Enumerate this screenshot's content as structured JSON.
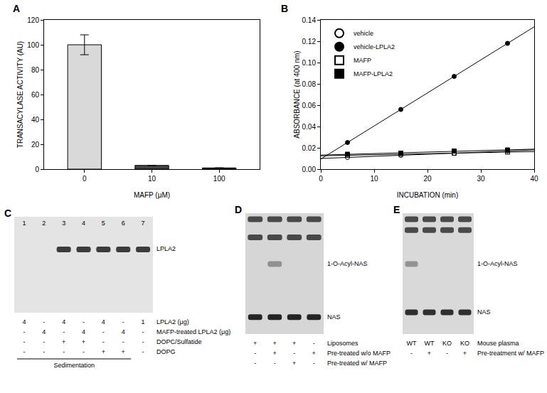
{
  "chart_data": [
    {
      "panel": "A",
      "type": "bar",
      "categories": [
        "0",
        "10",
        "100"
      ],
      "values": [
        100,
        3,
        1
      ],
      "errors": [
        8,
        null,
        null
      ],
      "colors": [
        "#d9d9d9",
        "#444444",
        "#222222"
      ],
      "x_label": "MAFP (μM)",
      "y_label": "TRANSACYLASE ACTIVITY (AU)",
      "ylim": [
        0,
        120
      ],
      "yticks": [
        0,
        20,
        40,
        60,
        80,
        100,
        120
      ]
    },
    {
      "panel": "B",
      "type": "scatter",
      "x": [
        5,
        15,
        25,
        35
      ],
      "series": [
        {
          "name": "vehicle",
          "color": "#000000",
          "marker": "circle-open",
          "values": [
            0.011,
            0.013,
            0.015,
            0.017
          ]
        },
        {
          "name": "vehicle-LPLA2",
          "color": "#000000",
          "marker": "circle",
          "values": [
            0.025,
            0.056,
            0.087,
            0.118
          ]
        },
        {
          "name": "MAFP",
          "color": "#000000",
          "marker": "square-open",
          "values": [
            0.013,
            0.014,
            0.015,
            0.016
          ]
        },
        {
          "name": "MAFP-LPLA2",
          "color": "#000000",
          "marker": "square",
          "values": [
            0.014,
            0.015,
            0.017,
            0.018
          ]
        }
      ],
      "x_label": "INCUBATION (min)",
      "y_label": "ABSORBANCE (at 400 nm)",
      "xlim": [
        0,
        40
      ],
      "xticks": [
        0,
        10,
        20,
        30,
        40
      ],
      "ylim": [
        0,
        0.14
      ],
      "yticks": [
        {
          "value": 0,
          "label": "0.00"
        },
        {
          "value": 0.02,
          "label": "0.02"
        },
        {
          "value": 0.04,
          "label": "0.04"
        },
        {
          "value": 0.06,
          "label": "0.06"
        },
        {
          "value": 0.08,
          "label": "0.08"
        },
        {
          "value": 0.1,
          "label": "0.10"
        },
        {
          "value": 0.12,
          "label": "0.12"
        },
        {
          "value": 0.14,
          "label": "0.14"
        }
      ],
      "legend": "upper left"
    }
  ],
  "gels": [
    {
      "panel": "C",
      "lane_numbers": [
        "1",
        "2",
        "3",
        "4",
        "5",
        "6",
        "7"
      ],
      "band_labels": [
        "LPLA2"
      ],
      "lanes": [
        [],
        [],
        [
          "LPLA2"
        ],
        [
          "LPLA2"
        ],
        [
          "LPLA2"
        ],
        [
          "LPLA2"
        ],
        [
          "LPLA2"
        ]
      ],
      "rows": [
        {
          "label": "LPLA2 (μg)",
          "cells": [
            "4",
            "-",
            "4",
            "-",
            "4",
            "-",
            "1"
          ]
        },
        {
          "label": "MAFP-treated LPLA2 (μg)",
          "cells": [
            "-",
            "4",
            "-",
            "4",
            "-",
            "4",
            "-"
          ]
        },
        {
          "label": "DOPC/Sulfatide",
          "cells": [
            "-",
            "-",
            "+",
            "+",
            "-",
            "-",
            "-"
          ]
        },
        {
          "label": "DOPG",
          "cells": [
            "-",
            "-",
            "-",
            "-",
            "+",
            "+",
            "-"
          ]
        }
      ],
      "footer": "Sedimentation"
    },
    {
      "panel": "D",
      "band_labels": [
        "1-O-Acyl-NAS",
        "NAS"
      ],
      "lanes": [
        [
          "NAS"
        ],
        [
          "1-O-Acyl-NAS",
          "NAS"
        ],
        [
          "NAS"
        ],
        [
          "NAS"
        ]
      ],
      "rows": [
        {
          "label": "Liposomes",
          "cells": [
            "+",
            "+",
            "+",
            "-"
          ]
        },
        {
          "label": "Pre-treated w/o MAFP",
          "cells": [
            "-",
            "+",
            "-",
            "+"
          ]
        },
        {
          "label": "Pre-treated w/ MAFP",
          "cells": [
            "-",
            "-",
            "+",
            "-"
          ]
        }
      ]
    },
    {
      "panel": "E",
      "band_labels": [
        "1-O-Acyl-NAS",
        "NAS"
      ],
      "lanes": [
        [
          "1-O-Acyl-NAS",
          "NAS"
        ],
        [
          "NAS"
        ],
        [
          "NAS"
        ],
        [
          "NAS"
        ]
      ],
      "rows": [
        {
          "label": "Mouse plasma",
          "cells": [
            "WT",
            "WT",
            "KO",
            "KO"
          ]
        },
        {
          "label": "Pre-treatment w/ MAFP",
          "cells": [
            "-",
            "+",
            "-",
            "+"
          ]
        }
      ]
    }
  ]
}
